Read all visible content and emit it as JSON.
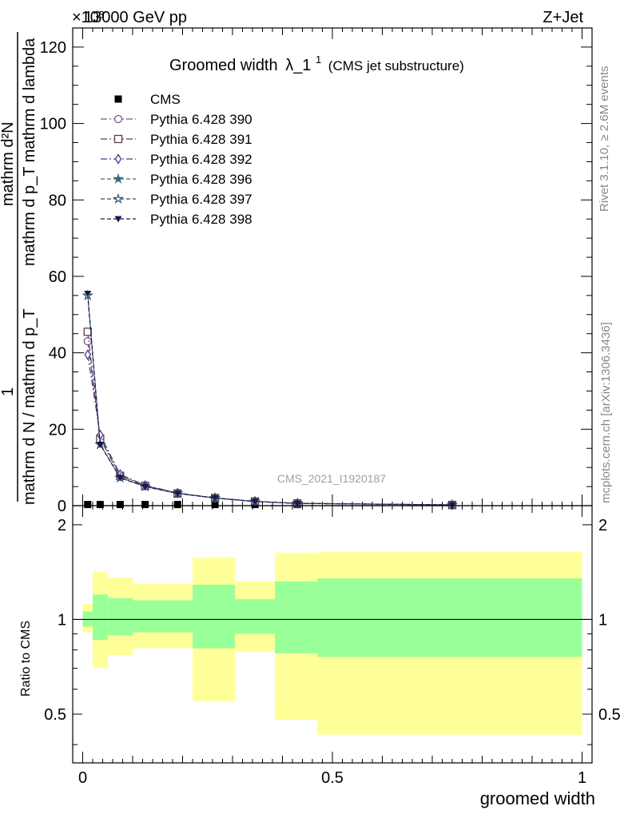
{
  "header": {
    "energy_label": "13000 GeV pp",
    "process_label": "Z+Jet",
    "exponent_label": "×10³"
  },
  "side_labels": {
    "rivet": "Rivet 3.1.10, ≥ 2.6M events",
    "mcplots": "mcplots.cern.ch [arXiv:1306.3436]"
  },
  "watermark": "CMS_2021_I1920187",
  "chart_data": [
    {
      "type": "line",
      "title": "Groomed width",
      "title_symbol": "λ_1",
      "title_superscript": "1",
      "subtitle": "(CMS jet substructure)",
      "ylabel_top": "mathrm d²N",
      "ylabel_top_cont": "mathrm d p_T mathrm d lambda",
      "ylabel_one": "1",
      "ylabel_bottom": "mathrm d N / mathrm d p_T",
      "xlim": [
        -0.02,
        1.02
      ],
      "ylim": [
        0,
        125
      ],
      "y_ticks": [
        0,
        20,
        40,
        60,
        80,
        100,
        120
      ],
      "y_tick_labels": [
        "0",
        "20",
        "40",
        "60",
        "80",
        "100",
        "120"
      ],
      "legend": {
        "placement": "top-left"
      },
      "series": [
        {
          "name": "CMS",
          "marker": "square-filled",
          "color": "#000000",
          "x": [
            0.01,
            0.035,
            0.075,
            0.125,
            0.19,
            0.265,
            0.345,
            0.43,
            0.74
          ],
          "y": [
            0.3,
            0.3,
            0.3,
            0.3,
            0.3,
            0.3,
            0.3,
            0.3,
            0.3
          ]
        },
        {
          "name": "Pythia 6.428 390",
          "marker": "circle-open",
          "color": "#7a5a8a",
          "dash": "8,3,2,3",
          "x": [
            0.01,
            0.035,
            0.075,
            0.125,
            0.19,
            0.265,
            0.345,
            0.43,
            0.74
          ],
          "y": [
            43,
            18,
            8,
            5.3,
            3.3,
            2.0,
            1.1,
            0.6,
            0.2
          ]
        },
        {
          "name": "Pythia 6.428 391",
          "marker": "square-open",
          "color": "#6a3a4a",
          "dash": "8,3,2,3",
          "x": [
            0.01,
            0.035,
            0.075,
            0.125,
            0.19,
            0.265,
            0.345,
            0.43,
            0.74
          ],
          "y": [
            45.5,
            17.5,
            7.8,
            5.2,
            3.2,
            2.0,
            1.1,
            0.6,
            0.2
          ]
        },
        {
          "name": "Pythia 6.428 392",
          "marker": "diamond-open",
          "color": "#4a3a8a",
          "dash": "8,3,2,3",
          "x": [
            0.01,
            0.035,
            0.075,
            0.125,
            0.19,
            0.265,
            0.345,
            0.43,
            0.74
          ],
          "y": [
            39.5,
            18.5,
            8.2,
            5.3,
            3.3,
            2.0,
            1.1,
            0.6,
            0.2
          ]
        },
        {
          "name": "Pythia 6.428 396",
          "marker": "star-filled",
          "color": "#3a6a7a",
          "dash": "5,3",
          "x": [
            0.01,
            0.035,
            0.075,
            0.125,
            0.19,
            0.265,
            0.345,
            0.43,
            0.74
          ],
          "y": [
            55,
            16,
            7.3,
            5.0,
            3.2,
            2.0,
            1.1,
            0.6,
            0.2
          ]
        },
        {
          "name": "Pythia 6.428 397",
          "marker": "star-open",
          "color": "#2a4a6a",
          "dash": "5,3",
          "x": [
            0.01,
            0.035,
            0.075,
            0.125,
            0.19,
            0.265,
            0.345,
            0.43,
            0.74
          ],
          "y": [
            55,
            16,
            7.3,
            5.0,
            3.2,
            2.0,
            1.1,
            0.6,
            0.2
          ]
        },
        {
          "name": "Pythia 6.428 398",
          "marker": "triangle-down-filled",
          "color": "#1a1a4a",
          "dash": "5,3",
          "x": [
            0.01,
            0.035,
            0.075,
            0.125,
            0.19,
            0.265,
            0.345,
            0.43,
            0.74
          ],
          "y": [
            55.5,
            16,
            7.3,
            5.0,
            3.2,
            2.0,
            1.1,
            0.6,
            0.2
          ]
        }
      ]
    },
    {
      "type": "area",
      "ylabel": "Ratio to CMS",
      "xlabel": "groomed width",
      "xlim": [
        -0.02,
        1.02
      ],
      "ylim": [
        0.35,
        2.3
      ],
      "x_ticks": [
        0,
        0.5,
        1
      ],
      "x_tick_labels": [
        "0",
        "0.5",
        "1"
      ],
      "y_ticks": [
        0.5,
        1,
        2
      ],
      "y_tick_labels": [
        "0.5",
        "1",
        "2"
      ],
      "band_colors": {
        "outer": "#ffff99",
        "inner": "#99ff99",
        "reference": "#000000"
      },
      "bins": [
        {
          "lo": 0.0,
          "hi": 0.02,
          "inner": [
            0.95,
            1.06
          ],
          "outer": [
            0.91,
            1.12
          ]
        },
        {
          "lo": 0.02,
          "hi": 0.05,
          "inner": [
            0.86,
            1.2
          ],
          "outer": [
            0.7,
            1.42
          ]
        },
        {
          "lo": 0.05,
          "hi": 0.1,
          "inner": [
            0.89,
            1.17
          ],
          "outer": [
            0.77,
            1.36
          ]
        },
        {
          "lo": 0.1,
          "hi": 0.22,
          "inner": [
            0.91,
            1.15
          ],
          "outer": [
            0.81,
            1.3
          ]
        },
        {
          "lo": 0.22,
          "hi": 0.305,
          "inner": [
            0.81,
            1.29
          ],
          "outer": [
            0.55,
            1.57
          ]
        },
        {
          "lo": 0.305,
          "hi": 0.385,
          "inner": [
            0.9,
            1.16
          ],
          "outer": [
            0.79,
            1.32
          ]
        },
        {
          "lo": 0.385,
          "hi": 0.47,
          "inner": [
            0.78,
            1.32
          ],
          "outer": [
            0.48,
            1.63
          ]
        },
        {
          "lo": 0.47,
          "hi": 1.0,
          "inner": [
            0.76,
            1.35
          ],
          "outer": [
            0.43,
            1.64
          ]
        }
      ]
    }
  ]
}
